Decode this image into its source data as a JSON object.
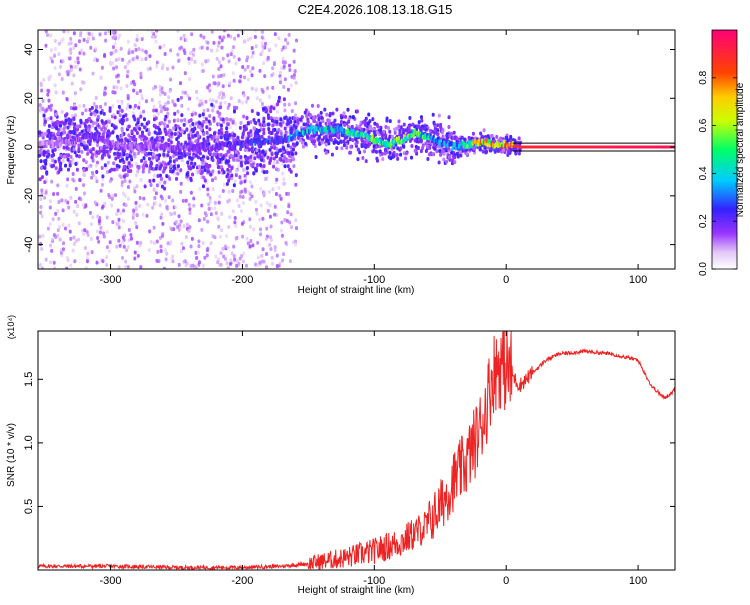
{
  "title": "C2E4.2026.108.13.18.G15",
  "chart_data": [
    {
      "type": "heatmap",
      "xlabel": "Height of straight line (km)",
      "ylabel": "Frequency (Hz)",
      "xlim": [
        -355,
        128
      ],
      "ylim": [
        -50,
        48
      ],
      "xticks": [
        -300,
        -200,
        -100,
        0,
        100
      ],
      "yticks": [
        -40,
        -20,
        0,
        20,
        40
      ],
      "colorbar": {
        "label": "Normalized spectral amplitude",
        "range": [
          0,
          1
        ],
        "ticks": [
          0.0,
          0.2,
          0.4,
          0.6,
          0.8
        ]
      },
      "ridge": {
        "x": [
          -355,
          -330,
          -315,
          -300,
          -260,
          -220,
          -190,
          -170,
          -150,
          -130,
          -110,
          -100,
          -90,
          -80,
          -70,
          -60,
          -50,
          -40,
          -30,
          -20,
          -10,
          0,
          10,
          128
        ],
        "freq": [
          1,
          2,
          5,
          1,
          0,
          0,
          2,
          3,
          7,
          7,
          5,
          3,
          1,
          3,
          6,
          4,
          2,
          0,
          1,
          2,
          1,
          1,
          0,
          0
        ],
        "amplitude": [
          0.1,
          0.15,
          0.2,
          0.15,
          0.15,
          0.2,
          0.25,
          0.3,
          0.4,
          0.45,
          0.5,
          0.55,
          0.5,
          0.55,
          0.5,
          0.45,
          0.35,
          0.4,
          0.5,
          0.75,
          0.8,
          0.85,
          0.9,
          0.95
        ]
      }
    },
    {
      "type": "line",
      "xlabel": "Height of straight line (km)",
      "ylabel": "SNR (10 * v/v)",
      "yscale_label": "(x10⁴)",
      "xlim": [
        -355,
        128
      ],
      "ylim": [
        0,
        1.88
      ],
      "xticks": [
        -300,
        -200,
        -100,
        0,
        100
      ],
      "yticks": [
        0.5,
        1.0,
        1.5
      ],
      "line_color": "#ee2222",
      "series": [
        {
          "name": "SNR",
          "x": [
            -355,
            -300,
            -250,
            -200,
            -170,
            -150,
            -120,
            -100,
            -80,
            -60,
            -50,
            -40,
            -30,
            -20,
            -15,
            -10,
            -5,
            0,
            10,
            20,
            30,
            40,
            60,
            80,
            100,
            110,
            120,
            128
          ],
          "y": [
            0.03,
            0.03,
            0.02,
            0.02,
            0.03,
            0.05,
            0.1,
            0.15,
            0.22,
            0.35,
            0.5,
            0.7,
            0.85,
            1.1,
            1.3,
            1.55,
            1.62,
            1.6,
            1.45,
            1.55,
            1.65,
            1.7,
            1.72,
            1.7,
            1.65,
            1.45,
            1.35,
            1.42
          ]
        }
      ]
    }
  ]
}
